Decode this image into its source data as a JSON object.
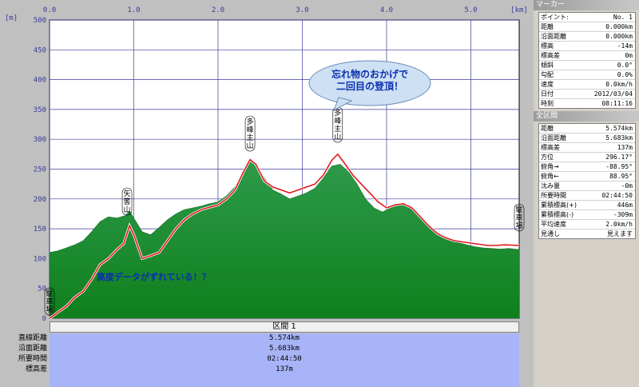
{
  "chart_data": {
    "type": "area",
    "x_unit": "[km]",
    "y_unit": "[m]",
    "x_ticks": [
      "0.0",
      "1.0",
      "2.0",
      "3.0",
      "4.0",
      "5.0"
    ],
    "y_ticks": [
      "0",
      "50",
      "100",
      "150",
      "200",
      "250",
      "300",
      "350",
      "400",
      "450",
      "500"
    ],
    "xlim": [
      0,
      5.574
    ],
    "ylim": [
      0,
      500
    ],
    "series": [
      {
        "values_x": [
          0,
          0.1,
          0.2,
          0.3,
          0.4,
          0.5,
          0.6,
          0.7,
          0.8,
          0.9,
          0.95,
          1.0,
          1.1,
          1.2,
          1.3,
          1.4,
          1.5,
          1.6,
          1.7,
          1.8,
          1.9,
          2.0,
          2.1,
          2.2,
          2.3,
          2.38,
          2.45,
          2.55,
          2.65,
          2.75,
          2.85,
          2.95,
          3.05,
          3.15,
          3.25,
          3.35,
          3.45,
          3.55,
          3.65,
          3.75,
          3.85,
          3.95,
          4.05,
          4.15,
          4.25,
          4.35,
          4.45,
          4.55,
          4.65,
          4.75,
          4.85,
          4.95,
          5.05,
          5.15,
          5.25,
          5.35,
          5.45,
          5.574
        ],
        "values_y": [
          110,
          113,
          118,
          123,
          130,
          145,
          162,
          170,
          168,
          172,
          180,
          168,
          145,
          140,
          152,
          165,
          175,
          182,
          185,
          188,
          192,
          195,
          205,
          220,
          240,
          262,
          258,
          235,
          215,
          208,
          200,
          205,
          210,
          218,
          235,
          255,
          258,
          245,
          225,
          200,
          185,
          178,
          185,
          192,
          188,
          175,
          162,
          150,
          140,
          132,
          127,
          123,
          120,
          118,
          117,
          116,
          117,
          115
        ]
      },
      {
        "values_x": [
          0,
          0.05,
          0.1,
          0.2,
          0.3,
          0.4,
          0.5,
          0.6,
          0.7,
          0.8,
          0.88,
          0.95,
          1.0,
          1.1,
          1.2,
          1.3,
          1.4,
          1.5,
          1.6,
          1.7,
          1.8,
          1.9,
          2.0,
          2.1,
          2.2,
          2.3,
          2.38,
          2.45,
          2.55,
          2.65,
          2.75,
          2.85,
          2.95,
          3.05,
          3.15,
          3.25,
          3.35,
          3.42,
          3.5,
          3.6,
          3.7,
          3.8,
          3.9,
          4.0,
          4.1,
          4.2,
          4.3,
          4.4,
          4.5,
          4.6,
          4.7,
          4.8,
          4.9,
          5.0,
          5.1,
          5.2,
          5.3,
          5.4,
          5.574
        ],
        "values_y": [
          0,
          5,
          10,
          20,
          35,
          45,
          65,
          90,
          100,
          115,
          125,
          155,
          140,
          100,
          105,
          110,
          130,
          150,
          165,
          175,
          182,
          186,
          190,
          200,
          215,
          245,
          266,
          258,
          230,
          220,
          215,
          210,
          215,
          220,
          225,
          240,
          265,
          275,
          260,
          240,
          225,
          210,
          195,
          185,
          190,
          192,
          185,
          170,
          155,
          142,
          135,
          130,
          128,
          126,
          124,
          122,
          122,
          123,
          122
        ]
      }
    ],
    "annotations": {
      "peak1": "矢筈山",
      "peak2": "多峰主山",
      "peak3": "多峰主山",
      "end": "駐車場",
      "start": "駐車場",
      "callout": [
        "忘れ物のおかげで",
        "二回目の登頂！"
      ],
      "note": "高度データがずれている！？"
    },
    "colors": {
      "terrain": "#1a8c34",
      "route": "#e0191e",
      "grid": "#3a3a99"
    }
  },
  "section_bar": {
    "label": "区間 1"
  },
  "stats": {
    "labels": [
      "直線距離",
      "沿面距離",
      "所要時間",
      "標高差"
    ],
    "values": [
      "5.574km",
      "5.683km",
      "02:44:50",
      "137m"
    ]
  },
  "marker_panel": {
    "title": "マーカー",
    "rows": [
      {
        "k": "ポイント:",
        "v": "No. 1"
      },
      {
        "k": "距離",
        "v": "0.000km"
      },
      {
        "k": "沿面距離",
        "v": "0.000km"
      },
      {
        "k": "標高",
        "v": "-14m"
      },
      {
        "k": "標高差",
        "v": "0m"
      },
      {
        "k": "傾斜",
        "v": "0.0°"
      },
      {
        "k": "勾配",
        "v": "0.0%"
      },
      {
        "k": "速度",
        "v": "0.0km/h"
      },
      {
        "k": "日付",
        "v": "2012/03/04"
      },
      {
        "k": "時刻",
        "v": "08:11:16"
      }
    ]
  },
  "all_panel": {
    "title": "全区間",
    "rows": [
      {
        "k": "距離",
        "v": "5.574km"
      },
      {
        "k": "沿面距離",
        "v": "5.683km"
      },
      {
        "k": "標高差",
        "v": "137m"
      },
      {
        "k": "方位",
        "v": "296.17°"
      },
      {
        "k": "俯角→",
        "v": "-88.95°"
      },
      {
        "k": "俯角←",
        "v": "88.95°"
      },
      {
        "k": "沈み量",
        "v": "-0m"
      },
      {
        "k": "所要時間",
        "v": "02:44:50"
      },
      {
        "k": "累積標高(+)",
        "v": "446m"
      },
      {
        "k": "累積標高(-)",
        "v": "-309m"
      },
      {
        "k": "平均速度",
        "v": "2.0km/h"
      },
      {
        "k": "見通し",
        "v": "見えます"
      }
    ]
  }
}
